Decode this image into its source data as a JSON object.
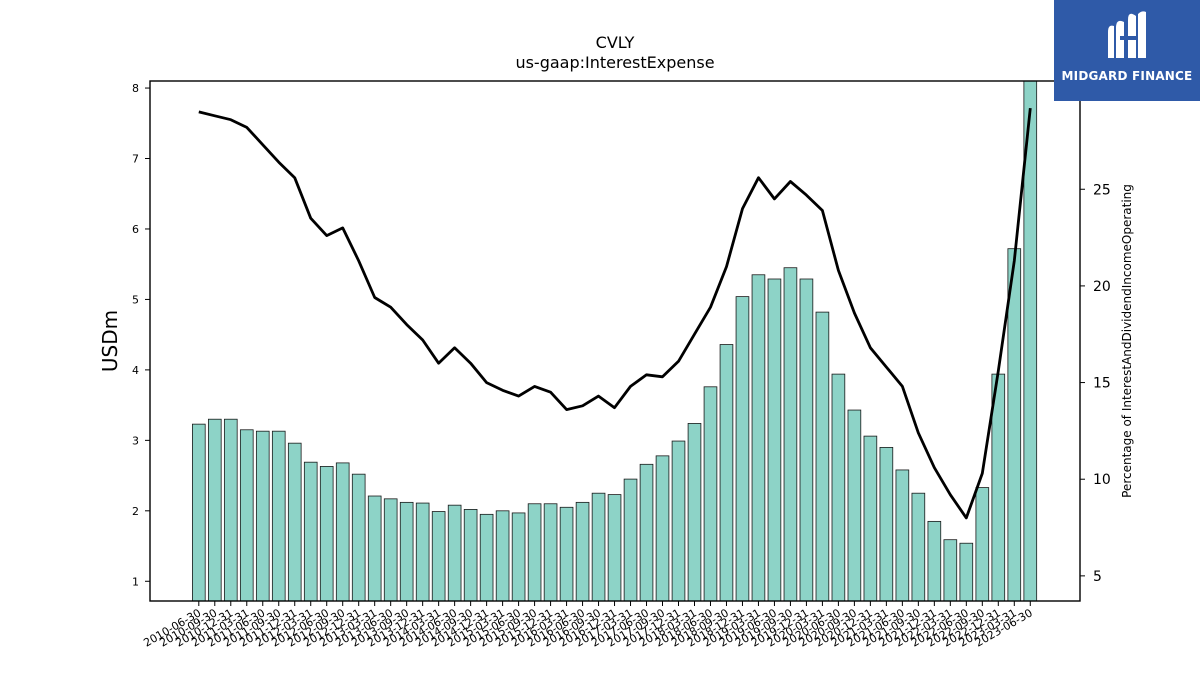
{
  "brand": {
    "name": "MIDGARD FINANCE",
    "bg": "#2f5aa8"
  },
  "colors": {
    "bar": "#8dd3c7",
    "bar_edge": "#1a1a1a",
    "line": "#000000"
  },
  "chart_data": {
    "type": "bar+line",
    "title": "CVLY",
    "subtitle": "us-gaap:InterestExpense",
    "ylabel": "USDm",
    "y2label": "Percentage of InterestAndDividendIncomeOperating",
    "ylim": [
      0.72,
      8.1
    ],
    "y2lim": [
      3.7,
      30.6
    ],
    "yticks": [
      1,
      2,
      3,
      4,
      5,
      6,
      7,
      8
    ],
    "y2ticks": [
      5,
      10,
      15,
      20,
      25
    ],
    "categories": [
      "2010-06-30",
      "2010-09-30",
      "2010-12-31",
      "2011-03-31",
      "2011-06-30",
      "2011-09-30",
      "2011-12-31",
      "2012-03-31",
      "2012-06-30",
      "2012-09-30",
      "2012-12-31",
      "2013-03-31",
      "2013-06-30",
      "2013-09-30",
      "2013-12-31",
      "2014-03-31",
      "2014-06-30",
      "2014-09-30",
      "2014-12-31",
      "2015-03-31",
      "2015-06-30",
      "2015-09-30",
      "2015-12-31",
      "2016-03-31",
      "2016-06-30",
      "2016-09-30",
      "2016-12-31",
      "2017-03-31",
      "2017-06-30",
      "2017-09-30",
      "2017-12-31",
      "2018-03-31",
      "2018-06-30",
      "2018-09-30",
      "2018-12-31",
      "2019-03-31",
      "2019-06-30",
      "2019-09-30",
      "2019-12-31",
      "2020-03-31",
      "2020-06-30",
      "2020-09-30",
      "2020-12-31",
      "2021-03-31",
      "2021-06-30",
      "2021-09-30",
      "2021-12-31",
      "2022-03-31",
      "2022-06-30",
      "2022-09-30",
      "2022-12-31",
      "2023-03-31",
      "2023-06-30"
    ],
    "series": [
      {
        "values": [
          3.23,
          3.3,
          3.3,
          3.15,
          3.13,
          3.13,
          2.96,
          2.69,
          2.63,
          2.68,
          2.52,
          2.21,
          2.17,
          2.12,
          2.11,
          1.99,
          2.08,
          2.02,
          1.95,
          2.0,
          1.97,
          2.1,
          2.1,
          2.05,
          2.12,
          2.25,
          2.23,
          2.45,
          2.66,
          2.78,
          2.99,
          3.24,
          3.76,
          4.36,
          5.04,
          5.35,
          5.29,
          5.45,
          5.29,
          4.82,
          3.94,
          3.43,
          3.06,
          2.9,
          2.58,
          2.25,
          1.85,
          1.59,
          1.54,
          2.33,
          3.94,
          5.72,
          8.1
        ]
      },
      {
        "values": [
          29.0,
          28.8,
          28.6,
          28.2,
          27.3,
          26.4,
          25.6,
          23.5,
          22.6,
          23.0,
          21.3,
          19.4,
          18.9,
          18.0,
          17.2,
          16.0,
          16.8,
          16.0,
          15.0,
          14.6,
          14.3,
          14.8,
          14.5,
          13.6,
          13.8,
          14.3,
          13.7,
          14.8,
          15.4,
          15.3,
          16.1,
          17.5,
          18.9,
          21.0,
          24.0,
          25.6,
          24.5,
          25.4,
          24.7,
          23.9,
          20.8,
          18.6,
          16.8,
          15.8,
          14.8,
          12.4,
          10.6,
          9.2,
          8.0,
          10.3,
          15.6,
          21.3,
          29.2
        ]
      }
    ]
  }
}
